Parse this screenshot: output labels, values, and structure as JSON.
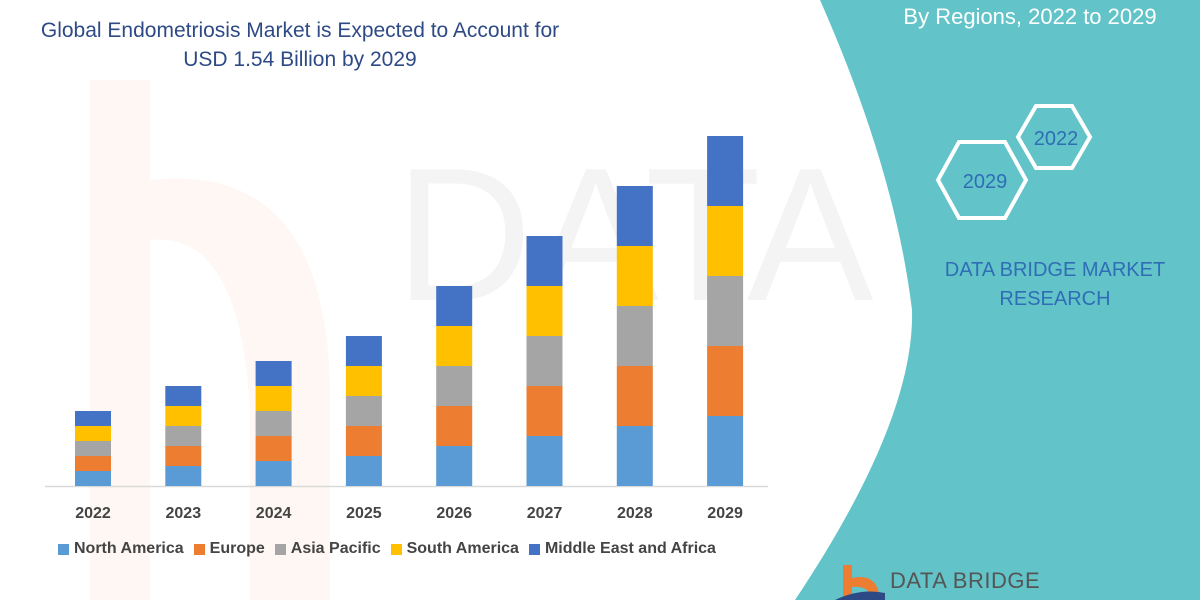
{
  "header": {
    "title": "Global Endometriosis Market is Expected to Account for USD 1.54 Billion by 2029",
    "subtitle": "By Regions, 2022 to 2029",
    "hex_years": [
      "2022",
      "2029"
    ],
    "brand": "DATA BRIDGE MARKET RESEARCH",
    "logo_text": "DATA BRIDGE",
    "watermark": "DATA BRIDGE MARKET RESEARCH"
  },
  "colors": {
    "panel": "#62c4c9",
    "title": "#2e4a86",
    "brand": "#2f6db5"
  },
  "chart_data": {
    "type": "bar",
    "stacked": true,
    "categories": [
      "2022",
      "2023",
      "2024",
      "2025",
      "2026",
      "2027",
      "2028",
      "2029"
    ],
    "series": [
      {
        "name": "North America",
        "color": "#5b9bd5",
        "values": [
          15,
          20,
          25,
          30,
          40,
          50,
          60,
          70
        ]
      },
      {
        "name": "Europe",
        "color": "#ed7d31",
        "values": [
          15,
          20,
          25,
          30,
          40,
          50,
          60,
          70
        ]
      },
      {
        "name": "Asia Pacific",
        "color": "#a5a5a5",
        "values": [
          15,
          20,
          25,
          30,
          40,
          50,
          60,
          70
        ]
      },
      {
        "name": "South America",
        "color": "#ffc000",
        "values": [
          15,
          20,
          25,
          30,
          40,
          50,
          60,
          70
        ]
      },
      {
        "name": "Middle East and Africa",
        "color": "#4472c4",
        "values": [
          15,
          20,
          25,
          30,
          40,
          50,
          60,
          70
        ]
      }
    ],
    "xlabel": "",
    "ylabel": "",
    "y_axis_visible": false,
    "grid": false,
    "legend_position": "bottom"
  }
}
